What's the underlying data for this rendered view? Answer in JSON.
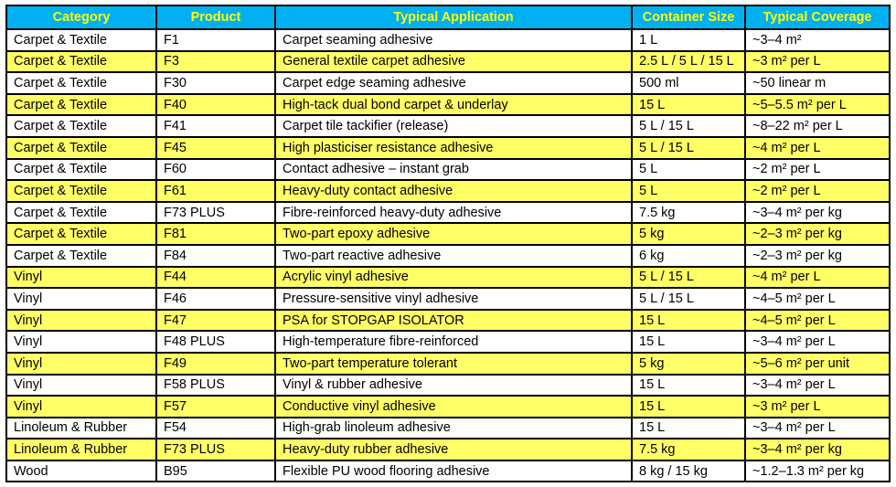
{
  "colors": {
    "header_bg": "#00B0F0",
    "header_text": "#FFFF00",
    "row_alt_bg": "#FFFF66",
    "row_bg": "#FFFFFF",
    "border": "#000000",
    "body_text": "#000000"
  },
  "table": {
    "columns": [
      "Category",
      "Product",
      "Typical Application",
      "Container Size",
      "Typical Coverage"
    ],
    "rows": [
      [
        "Carpet & Textile",
        "F1",
        "Carpet seaming adhesive",
        "1 L",
        "~3–4 m²"
      ],
      [
        "Carpet & Textile",
        "F3",
        "General textile carpet adhesive",
        "2.5 L / 5 L / 15 L",
        "~3 m² per L"
      ],
      [
        "Carpet & Textile",
        "F30",
        "Carpet edge seaming adhesive",
        "500 ml",
        "~50 linear m"
      ],
      [
        "Carpet & Textile",
        "F40",
        "High-tack dual bond carpet & underlay",
        "15 L",
        "~5–5.5 m² per L"
      ],
      [
        "Carpet & Textile",
        "F41",
        "Carpet tile tackifier (release)",
        "5 L / 15 L",
        "~8–22 m² per L"
      ],
      [
        "Carpet & Textile",
        "F45",
        "High plasticiser resistance adhesive",
        "5 L / 15 L",
        "~4 m² per L"
      ],
      [
        "Carpet & Textile",
        "F60",
        "Contact adhesive – instant grab",
        "5 L",
        "~2 m² per L"
      ],
      [
        "Carpet & Textile",
        "F61",
        "Heavy-duty contact adhesive",
        "5 L",
        "~2 m² per L"
      ],
      [
        "Carpet & Textile",
        "F73 PLUS",
        "Fibre-reinforced heavy-duty adhesive",
        "7.5 kg",
        "~3–4 m² per kg"
      ],
      [
        "Carpet & Textile",
        "F81",
        "Two-part epoxy adhesive",
        "5 kg",
        "~2–3 m² per kg"
      ],
      [
        "Carpet & Textile",
        "F84",
        "Two-part reactive adhesive",
        "6 kg",
        "~2–3 m² per kg"
      ],
      [
        "Vinyl",
        "F44",
        "Acrylic vinyl adhesive",
        "5 L / 15 L",
        "~4 m² per L"
      ],
      [
        "Vinyl",
        "F46",
        "Pressure-sensitive vinyl adhesive",
        "5 L / 15 L",
        "~4–5 m² per L"
      ],
      [
        "Vinyl",
        "F47",
        "PSA for STOPGAP ISOLATOR",
        "15 L",
        "~4–5 m² per L"
      ],
      [
        "Vinyl",
        "F48 PLUS",
        "High-temperature fibre-reinforced",
        "15 L",
        "~3–4 m² per L"
      ],
      [
        "Vinyl",
        "F49",
        "Two-part temperature tolerant",
        "5 kg",
        "~5–6 m² per unit"
      ],
      [
        "Vinyl",
        "F58 PLUS",
        "Vinyl & rubber adhesive",
        "15 L",
        "~3–4 m² per L"
      ],
      [
        "Vinyl",
        "F57",
        "Conductive vinyl adhesive",
        "15 L",
        "~3 m² per L"
      ],
      [
        "Linoleum & Rubber",
        "F54",
        "High-grab linoleum adhesive",
        "15 L",
        "~3–4 m² per L"
      ],
      [
        "Linoleum & Rubber",
        "F73 PLUS",
        "Heavy-duty rubber adhesive",
        "7.5 kg",
        "~3–4 m² per kg"
      ],
      [
        "Wood",
        "B95",
        "Flexible PU wood flooring adhesive",
        "8 kg / 15 kg",
        "~1.2–1.3 m² per kg"
      ]
    ]
  }
}
